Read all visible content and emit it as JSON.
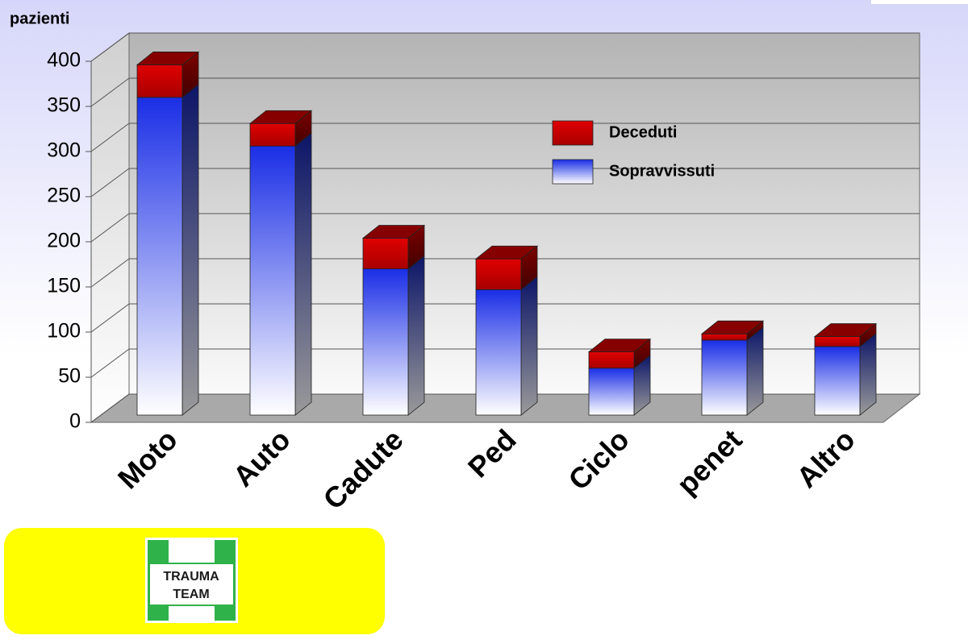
{
  "chart_data": {
    "type": "bar3d_stacked",
    "ylabel": "pazienti",
    "categories": [
      "Moto",
      "Auto",
      "Cadute",
      "Ped",
      "Ciclo",
      "penet",
      "Altro"
    ],
    "series": [
      {
        "name": "Sopravvissuti",
        "color": "#1a2ee6",
        "values": [
          352,
          298,
          162,
          139,
          52,
          83,
          76
        ]
      },
      {
        "name": "Deceduti",
        "color": "#e00000",
        "values": [
          36,
          25,
          34,
          34,
          18,
          7,
          11
        ]
      }
    ],
    "ylim": [
      0,
      400
    ],
    "yticks": [
      0,
      50,
      100,
      150,
      200,
      250,
      300,
      350,
      400
    ],
    "grid": true,
    "legend": "upper right"
  },
  "logo_text": [
    "TRAUMA",
    "TEAM"
  ]
}
